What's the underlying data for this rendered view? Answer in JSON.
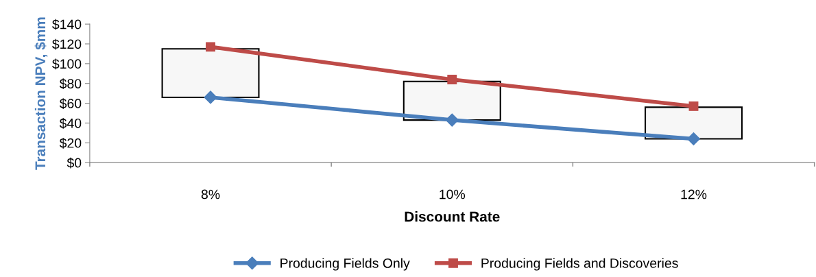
{
  "chart_data": {
    "type": "line",
    "xlabel": "Discount Rate",
    "ylabel": "Transaction NPV, $mm",
    "categories": [
      "8%",
      "10%",
      "12%"
    ],
    "series": [
      {
        "name": "Producing Fields Only",
        "color": "#4a7ebb",
        "values": [
          66,
          43,
          24
        ],
        "marker": "diamond"
      },
      {
        "name": "Producing Fields and Discoveries",
        "color": "#be4b48",
        "values": [
          117,
          84,
          57
        ],
        "marker": "square"
      },
      {
        "type": "bar",
        "color": "#f7f7f7",
        "base": [
          66,
          43,
          24
        ],
        "values": [
          49,
          39,
          32
        ]
      }
    ],
    "ylim": [
      0,
      140
    ],
    "yticks": [
      {
        "value": 0,
        "label": "$0"
      },
      {
        "value": 20,
        "label": "$20"
      },
      {
        "value": 40,
        "label": "$40"
      },
      {
        "value": 60,
        "label": "$60"
      },
      {
        "value": 80,
        "label": "$80"
      },
      {
        "value": 100,
        "label": "$100"
      },
      {
        "value": 120,
        "label": "$120"
      },
      {
        "value": 140,
        "label": "$140"
      }
    ],
    "grid": false,
    "legend": "bottom"
  }
}
